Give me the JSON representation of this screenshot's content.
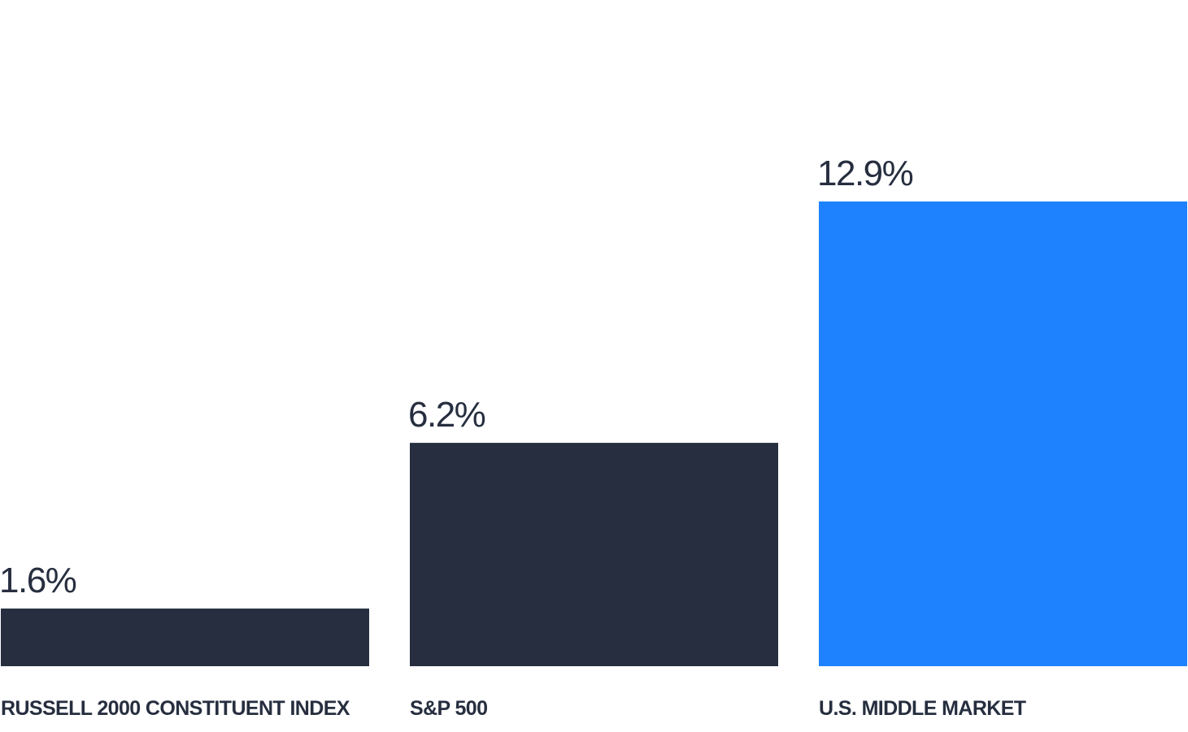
{
  "chart_data": {
    "type": "bar",
    "categories": [
      "RUSSELL 2000 CONSTITUENT INDEX",
      "S&P 500",
      "U.S. MIDDLE MARKET"
    ],
    "values": [
      1.6,
      6.2,
      12.9
    ],
    "value_labels": [
      "1.6%",
      "6.2%",
      "12.9%"
    ],
    "bar_colors": [
      "#262e3f",
      "#262e3f",
      "#1e82ff"
    ],
    "ylim": [
      0,
      12.9
    ],
    "grid": false,
    "legend": "none"
  }
}
